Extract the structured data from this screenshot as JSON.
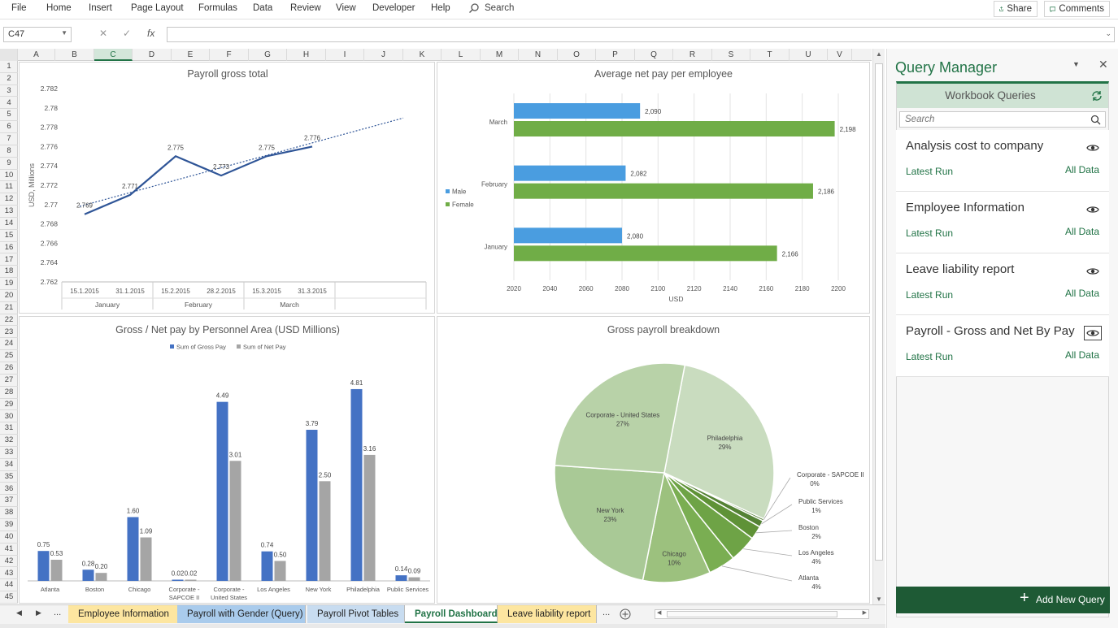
{
  "ribbon": {
    "menus": [
      "File",
      "Home",
      "Insert",
      "Page Layout",
      "Formulas",
      "Data",
      "Review",
      "View",
      "Developer",
      "Help"
    ],
    "search_label": "Search",
    "share_label": "Share",
    "comments_label": "Comments"
  },
  "formula_bar": {
    "name_box": "C47",
    "fx": "fx",
    "formula": ""
  },
  "columns": [
    "A",
    "B",
    "C",
    "D",
    "E",
    "F",
    "G",
    "H",
    "I",
    "J",
    "K",
    "L",
    "M",
    "N",
    "O",
    "P",
    "Q",
    "R",
    "S",
    "T",
    "U",
    "V"
  ],
  "selected_column": "C",
  "rows": [
    "1",
    "2",
    "3",
    "4",
    "5",
    "6",
    "7",
    "8",
    "9",
    "10",
    "11",
    "12",
    "13",
    "14",
    "15",
    "16",
    "17",
    "18",
    "19",
    "20",
    "21",
    "22",
    "23",
    "24",
    "25",
    "26",
    "27",
    "28",
    "29",
    "30",
    "31",
    "32",
    "33",
    "34",
    "35",
    "36",
    "37",
    "38",
    "39",
    "40",
    "41",
    "42",
    "43",
    "44",
    "45"
  ],
  "chart_data": [
    {
      "type": "line",
      "title": "Payroll gross total",
      "ylabel": "USD, Millions",
      "ylim": [
        2.762,
        2.782
      ],
      "yticks": [
        "2.762",
        "2.764",
        "2.766",
        "2.768",
        "2.77",
        "2.772",
        "2.774",
        "2.776",
        "2.778",
        "2.78",
        "2.782"
      ],
      "x": [
        "15.1.2015",
        "31.1.2015",
        "15.2.2015",
        "28.2.2015",
        "15.3.2015",
        "31.3.2015"
      ],
      "groups": [
        "January",
        "February",
        "March"
      ],
      "values": [
        2.769,
        2.771,
        2.775,
        2.773,
        2.775,
        2.776
      ],
      "labels": [
        "2.769",
        "2.771",
        "2.775",
        "2.773",
        "2.775",
        "2.776"
      ],
      "trendline": true
    },
    {
      "type": "bar",
      "orientation": "horizontal",
      "title": "Average net pay per employee",
      "xlabel": "USD",
      "xlim": [
        2020,
        2200
      ],
      "xticks": [
        "2020",
        "2040",
        "2060",
        "2080",
        "2100",
        "2120",
        "2140",
        "2160",
        "2180",
        "2200"
      ],
      "categories": [
        "March",
        "February",
        "January"
      ],
      "series": [
        {
          "name": "Male",
          "color": "#4a9de0",
          "values": [
            2090,
            2082,
            2080
          ],
          "labels": [
            "2,090",
            "2,082",
            "2,080"
          ]
        },
        {
          "name": "Female",
          "color": "#70ad47",
          "values": [
            2198,
            2186,
            2166
          ],
          "labels": [
            "2,198",
            "2,186",
            "2,166"
          ]
        }
      ]
    },
    {
      "type": "bar",
      "title": "Gross / Net pay by Personnel Area (USD Millions)",
      "categories": [
        [
          "Atlanta"
        ],
        [
          "Boston"
        ],
        [
          "Chicago"
        ],
        [
          "Corporate -",
          "SAPCOE II"
        ],
        [
          "Corporate -",
          "United States"
        ],
        [
          "Los Angeles"
        ],
        [
          "New York"
        ],
        [
          "Philadelphia"
        ],
        [
          "Public Services"
        ]
      ],
      "ylim": [
        0,
        5.4
      ],
      "series": [
        {
          "name": "Sum of Gross Pay",
          "color": "#4472c4",
          "values": [
            0.75,
            0.28,
            1.6,
            0.02,
            4.49,
            0.74,
            3.79,
            4.81,
            0.14
          ],
          "labels": [
            "0.75",
            "0.28",
            "1.60",
            "0.02",
            "4.49",
            "0.74",
            "3.79",
            "4.81",
            "0.14"
          ]
        },
        {
          "name": "Sum of Net Pay",
          "color": "#a5a5a5",
          "values": [
            0.53,
            0.2,
            1.09,
            0.02,
            3.01,
            0.5,
            2.5,
            3.16,
            0.09
          ],
          "labels": [
            "0.53",
            "0.20",
            "1.09",
            "0.02",
            "3.01",
            "0.50",
            "2.50",
            "3.16",
            "0.09"
          ]
        }
      ]
    },
    {
      "type": "pie",
      "title": "Gross payroll breakdown",
      "slices": [
        {
          "name": "Philadelphia",
          "value": 29,
          "label": "29%",
          "color": "#c9dcbf"
        },
        {
          "name": "Corporate - SAPCOE II",
          "value": 0.3,
          "label": "0%",
          "color": "#4b7a2a"
        },
        {
          "name": "Public Services",
          "value": 1,
          "label": "1%",
          "color": "#548235"
        },
        {
          "name": "Boston",
          "value": 2,
          "label": "2%",
          "color": "#5f9237"
        },
        {
          "name": "Los Angeles",
          "value": 4,
          "label": "4%",
          "color": "#6ea346"
        },
        {
          "name": "Atlanta",
          "value": 4,
          "label": "4%",
          "color": "#7aae52"
        },
        {
          "name": "Chicago",
          "value": 10,
          "label": "10%",
          "color": "#9cc17e"
        },
        {
          "name": "New York",
          "value": 23,
          "label": "23%",
          "color": "#a9c996"
        },
        {
          "name": "Corporate - United States",
          "value": 27,
          "label": "27%",
          "color": "#b8d2a8"
        }
      ]
    }
  ],
  "sheet_tabs": [
    {
      "label": "Employee Information",
      "color": "#fde6a0",
      "active": false
    },
    {
      "label": "Payroll with Gender (Query)",
      "color": "#a9cbec",
      "active": false
    },
    {
      "label": "Payroll Pivot Tables",
      "color": "#c8dcf0",
      "active": false
    },
    {
      "label": "Payroll Dashboard",
      "color": "#ffffff",
      "active": true
    },
    {
      "label": "Leave liability report",
      "color": "#fde6a0",
      "active": false
    }
  ],
  "tab_more": "...",
  "query_manager": {
    "title": "Query Manager",
    "section_title": "Workbook Queries",
    "search_placeholder": "Search",
    "queries": [
      {
        "name": "Analysis cost to company",
        "run": "Latest Run",
        "data": "All Data"
      },
      {
        "name": "Employee Information",
        "run": "Latest Run",
        "data": "All Data"
      },
      {
        "name": "Leave liability report",
        "run": "Latest Run",
        "data": "All Data"
      },
      {
        "name": "Payroll - Gross and Net By Pay",
        "run": "Latest Run",
        "data": "All Data"
      }
    ],
    "add_label": "Add New Query",
    "accent": "#217346"
  }
}
